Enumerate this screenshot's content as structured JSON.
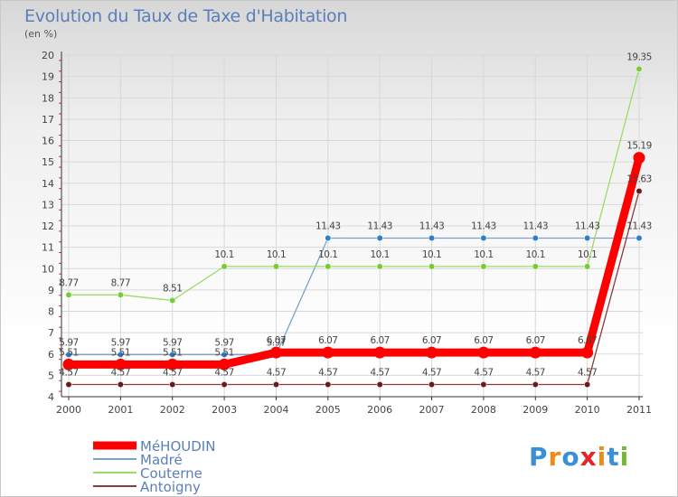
{
  "title": "Evolution du Taux de Taxe d'Habitation",
  "subtitle": "(en %)",
  "logo_text": "Proxiti",
  "colors": {
    "background_top": "#d7d7d7",
    "grid": "#d8d8d8",
    "axis": "#333333",
    "title": "#5a7fb8",
    "label": "#444444"
  },
  "chart_data": {
    "type": "line",
    "title": "Evolution du Taux de Taxe d'Habitation",
    "ylabel": "(en %)",
    "xlabel": "",
    "x": [
      "2000",
      "2001",
      "2002",
      "2003",
      "2004",
      "2005",
      "2006",
      "2007",
      "2008",
      "2009",
      "2010",
      "2011"
    ],
    "ylim": [
      4,
      20
    ],
    "yticks": [
      4,
      5,
      6,
      7,
      8,
      9,
      10,
      11,
      12,
      13,
      14,
      15,
      16,
      17,
      18,
      19,
      20
    ],
    "grid": true,
    "legend_position": "bottom-left",
    "series": [
      {
        "name": "MéHOUDIN",
        "color": "#ff0000",
        "stroke_width": "thick",
        "values": [
          5.51,
          5.51,
          5.51,
          5.51,
          6.07,
          6.07,
          6.07,
          6.07,
          6.07,
          6.07,
          6.07,
          15.19
        ],
        "labels": [
          "5.51",
          "5.51",
          "5.51",
          "5.51",
          "6.07",
          "6.07",
          "6.07",
          "6.07",
          "6.07",
          "6.07",
          "6.07",
          "15.19"
        ]
      },
      {
        "name": "Madré",
        "color": "#7aa3cc",
        "marker_color": "#2f7fc8",
        "values": [
          5.97,
          5.97,
          5.97,
          5.97,
          5.97,
          11.43,
          11.43,
          11.43,
          11.43,
          11.43,
          11.43,
          11.43
        ],
        "labels": [
          "5.97",
          "5.97",
          "5.97",
          "5.97",
          "5.97",
          "11.43",
          "11.43",
          "11.43",
          "11.43",
          "11.43",
          "11.43",
          "11.43"
        ]
      },
      {
        "name": "Couterne",
        "color": "#99dd66",
        "marker_color": "#77cc33",
        "values": [
          8.77,
          8.77,
          8.51,
          10.1,
          10.1,
          10.1,
          10.1,
          10.1,
          10.1,
          10.1,
          10.1,
          19.35
        ],
        "labels": [
          "8.77",
          "8.77",
          "8.51",
          "10.1",
          "10.1",
          "10.1",
          "10.1",
          "10.1",
          "10.1",
          "10.1",
          "10.1",
          "19.35"
        ]
      },
      {
        "name": "Antoigny",
        "color": "#8b3a3a",
        "marker_color": "#6b1a1a",
        "values": [
          4.57,
          4.57,
          4.57,
          4.57,
          4.57,
          4.57,
          4.57,
          4.57,
          4.57,
          4.57,
          4.57,
          13.63
        ],
        "labels": [
          "4.57",
          "4.57",
          "4.57",
          "4.57",
          "4.57",
          "4.57",
          "4.57",
          "4.57",
          "4.57",
          "4.57",
          "4.57",
          "13.63"
        ]
      }
    ]
  }
}
